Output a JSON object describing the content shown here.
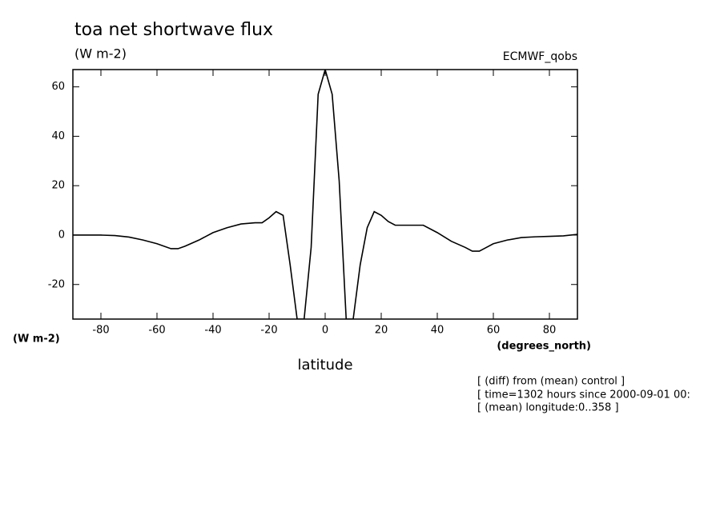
{
  "chart_data": {
    "type": "line",
    "title": "toa net shortwave flux",
    "subtitle": "(W m-2)",
    "dataset": "ECMWF_qobs",
    "y_label": "(W m-2)",
    "x_units": "(degrees_north)",
    "x_label": "latitude",
    "notes": [
      "[ (diff) from (mean) control ]",
      "[ time=1302 hours since 2000-09-01 00:",
      "[ (mean) longitude:0..358 ]"
    ],
    "x": [
      -90,
      -85,
      -80,
      -75,
      -70,
      -65,
      -60,
      -55,
      -52.5,
      -50,
      -45,
      -40,
      -35,
      -30,
      -25,
      -22.5,
      -20,
      -17.5,
      -15,
      -12.5,
      -10,
      -7.5,
      -5,
      -2.5,
      0,
      2.5,
      5,
      7.5,
      10,
      12.5,
      15,
      17.5,
      20,
      22.5,
      25,
      30,
      35,
      40,
      45,
      50,
      52.5,
      55,
      57.5,
      60,
      65,
      70,
      75,
      80,
      85,
      90
    ],
    "series": [
      {
        "name": "toa net shortwave flux",
        "color": "#000000",
        "values": [
          0,
          0,
          0,
          -0.2,
          -0.8,
          -2,
          -3.5,
          -5.5,
          -5.5,
          -4.5,
          -2,
          1,
          3,
          4.5,
          5,
          5,
          7,
          9.5,
          8,
          -12,
          -34,
          -34,
          -5,
          57,
          67,
          57,
          22,
          -34,
          -34,
          -12,
          3,
          9.5,
          8,
          5.5,
          4,
          4,
          4,
          1,
          -2.5,
          -5,
          -6.5,
          -6.5,
          -5,
          -3.5,
          -2,
          -1,
          -0.7,
          -0.5,
          -0.3,
          0.3
        ]
      }
    ],
    "xlim": [
      -90,
      90
    ],
    "ylim": [
      -34,
      67
    ],
    "xticks": [
      -80,
      -60,
      -40,
      -20,
      0,
      20,
      40,
      60,
      80
    ],
    "yticks": [
      -20,
      0,
      20,
      40,
      60
    ]
  }
}
